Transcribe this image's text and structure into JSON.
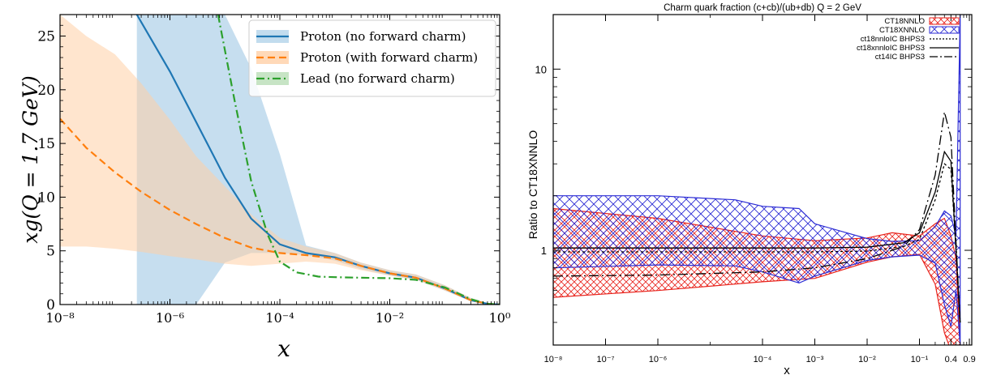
{
  "chart_data": [
    {
      "type": "line",
      "xscale": "log",
      "xlim": [
        1e-08,
        1
      ],
      "ylim": [
        0,
        27
      ],
      "xlabel": "x",
      "ylabel": "xg(Q = 1.7 GeV)",
      "xticks": [
        {
          "value": 1e-08,
          "label": "10⁻⁸"
        },
        {
          "value": 1e-06,
          "label": "10⁻⁶"
        },
        {
          "value": 0.0001,
          "label": "10⁻⁴"
        },
        {
          "value": 0.01,
          "label": "10⁻²"
        },
        {
          "value": 1,
          "label": "10⁰"
        }
      ],
      "yticks": [
        0,
        5,
        10,
        15,
        20,
        25
      ],
      "legend_position": "top-right",
      "series": [
        {
          "name": "Proton (no forward charm)",
          "color": "#1f77b4",
          "style": "solid",
          "x": [
            2.5e-07,
            1e-06,
            3e-06,
            1e-05,
            3e-05,
            0.0001,
            0.0003,
            0.001,
            0.003,
            0.01,
            0.03,
            0.1,
            0.3,
            0.6,
            1
          ],
          "y": [
            27,
            21.7,
            17,
            11.8,
            8.0,
            5.6,
            4.8,
            4.4,
            3.6,
            2.9,
            2.5,
            1.5,
            0.4,
            0.07,
            0
          ],
          "band_lo": [
            0,
            0,
            0,
            3.9,
            4.8,
            4.8,
            4.6,
            4.1,
            3.3,
            2.7,
            2.3,
            1.3,
            0.3,
            0.05,
            0
          ],
          "band_hi": [
            27,
            27,
            27,
            27,
            22,
            14,
            5.5,
            4.8,
            3.9,
            3.2,
            2.8,
            1.8,
            0.6,
            0.12,
            0
          ],
          "band_color": "#b3d3ea"
        },
        {
          "name": "Proton (with forward charm)",
          "color": "#ff7f0e",
          "style": "dashed",
          "x": [
            1e-08,
            3e-08,
            1e-07,
            3e-07,
            1e-06,
            3e-06,
            1e-05,
            3e-05,
            0.0001,
            0.0003,
            0.001,
            0.003,
            0.01,
            0.03,
            0.1,
            0.3,
            0.6,
            1
          ],
          "y": [
            17.3,
            14.6,
            12.3,
            10.5,
            8.8,
            7.5,
            6.2,
            5.3,
            4.8,
            4.6,
            4.3,
            3.6,
            2.9,
            2.5,
            1.5,
            0.4,
            0.07,
            0
          ],
          "band_lo": [
            5.4,
            5.4,
            5.2,
            4.9,
            4.5,
            4.2,
            3.8,
            3.6,
            3.8,
            4.0,
            3.8,
            3.2,
            2.7,
            2.3,
            1.3,
            0.3,
            0.05,
            0
          ],
          "band_hi": [
            27,
            25,
            23.3,
            20.6,
            17.2,
            13.8,
            11.0,
            8.4,
            6.2,
            5.4,
            4.8,
            3.9,
            3.2,
            2.8,
            1.8,
            0.6,
            0.12,
            0
          ],
          "band_color": "#ffcfa6"
        },
        {
          "name": "Lead (no forward charm)",
          "color": "#2ca02c",
          "style": "dashdot",
          "x": [
            7.5e-06,
            1.5e-05,
            3e-05,
            6e-05,
            0.0001,
            0.0002,
            0.0005,
            0.001,
            0.003,
            0.01,
            0.03,
            0.1,
            0.3,
            0.6,
            1
          ],
          "y": [
            27,
            19,
            11.5,
            6.5,
            4.0,
            3.0,
            2.6,
            2.55,
            2.5,
            2.45,
            2.3,
            1.6,
            0.5,
            0.07,
            0
          ],
          "band_color": "#b9ddb7"
        }
      ]
    },
    {
      "type": "line",
      "title": "Charm quark fraction (c+cb)/(ub+db)    Q = 2 GeV",
      "xscale": "log",
      "yscale": "log",
      "xlim": [
        1e-08,
        1
      ],
      "ylim": [
        0.3,
        20
      ],
      "xlabel": "x",
      "ylabel": "Ratio to CT18XNNLO",
      "xticks": [
        {
          "value": 1e-08,
          "label": "10⁻⁸"
        },
        {
          "value": 1e-07,
          "label": "10⁻⁷"
        },
        {
          "value": 1e-06,
          "label": "10⁻⁶"
        },
        {
          "value": 0.0001,
          "label": "10⁻⁴"
        },
        {
          "value": 0.001,
          "label": "10⁻³"
        },
        {
          "value": 0.01,
          "label": "10⁻²"
        },
        {
          "value": 0.1,
          "label": "10⁻¹"
        },
        {
          "value": 0.4,
          "label": "0.4"
        },
        {
          "value": 0.9,
          "label": "0.9"
        }
      ],
      "yticks": [
        {
          "value": 1,
          "label": "1"
        },
        {
          "value": 10,
          "label": "10"
        }
      ],
      "legend_position": "top-right",
      "bands": [
        {
          "name": "CT18NNLO",
          "color": "#e8231c",
          "x": [
            1e-08,
            1e-06,
            0.0001,
            0.001,
            0.01,
            0.03,
            0.1,
            0.2,
            0.3,
            0.4,
            0.5,
            0.6
          ],
          "lo": [
            0.55,
            0.6,
            0.67,
            0.7,
            0.86,
            0.92,
            0.95,
            0.65,
            0.35,
            0.28,
            0.3,
            0.3
          ],
          "hi": [
            1.7,
            1.5,
            1.2,
            1.13,
            1.17,
            1.25,
            1.2,
            1.4,
            1.5,
            1.2,
            0.9,
            0.3
          ]
        },
        {
          "name": "CT18XNNLO",
          "color": "#2b2bd4",
          "x": [
            1e-08,
            1e-06,
            3e-05,
            0.0001,
            0.0005,
            0.001,
            0.01,
            0.03,
            0.1,
            0.2,
            0.3,
            0.4,
            0.5,
            0.6
          ],
          "lo": [
            0.8,
            0.83,
            0.82,
            0.76,
            0.66,
            0.72,
            0.88,
            0.92,
            0.94,
            0.85,
            0.5,
            0.38,
            0.6,
            0.3
          ],
          "hi": [
            2.0,
            2.0,
            1.9,
            1.75,
            1.7,
            1.4,
            1.16,
            1.12,
            1.13,
            1.35,
            1.65,
            1.55,
            1.2,
            20
          ]
        }
      ],
      "series": [
        {
          "name": "ct18nnloIC BHPS3",
          "color": "#000000",
          "style": "dotted",
          "x": [
            1e-08,
            1e-06,
            0.0001,
            0.001,
            0.01,
            0.05,
            0.1,
            0.2,
            0.3,
            0.4,
            0.5,
            0.6
          ],
          "y": [
            0.98,
            0.98,
            0.98,
            0.98,
            0.99,
            1.05,
            1.15,
            1.9,
            3.0,
            2.8,
            1.0,
            0.4
          ]
        },
        {
          "name": "ct18xnnloIC BHPS3",
          "color": "#000000",
          "style": "solid",
          "x": [
            1e-08,
            1e-06,
            0.0001,
            0.001,
            0.01,
            0.05,
            0.1,
            0.2,
            0.3,
            0.4,
            0.5,
            0.6
          ],
          "y": [
            1.03,
            1.03,
            1.03,
            1.03,
            1.04,
            1.1,
            1.25,
            2.1,
            3.5,
            3.1,
            1.0,
            0.4
          ]
        },
        {
          "name": "ct14IC BHPS3",
          "color": "#000000",
          "style": "dashdot",
          "x": [
            1e-08,
            1e-06,
            0.0001,
            0.001,
            0.01,
            0.05,
            0.1,
            0.2,
            0.3,
            0.4,
            0.5,
            0.6
          ],
          "y": [
            0.72,
            0.73,
            0.76,
            0.8,
            0.9,
            1.05,
            1.3,
            2.6,
            5.8,
            4.2,
            1.1,
            0.4
          ]
        }
      ]
    }
  ]
}
